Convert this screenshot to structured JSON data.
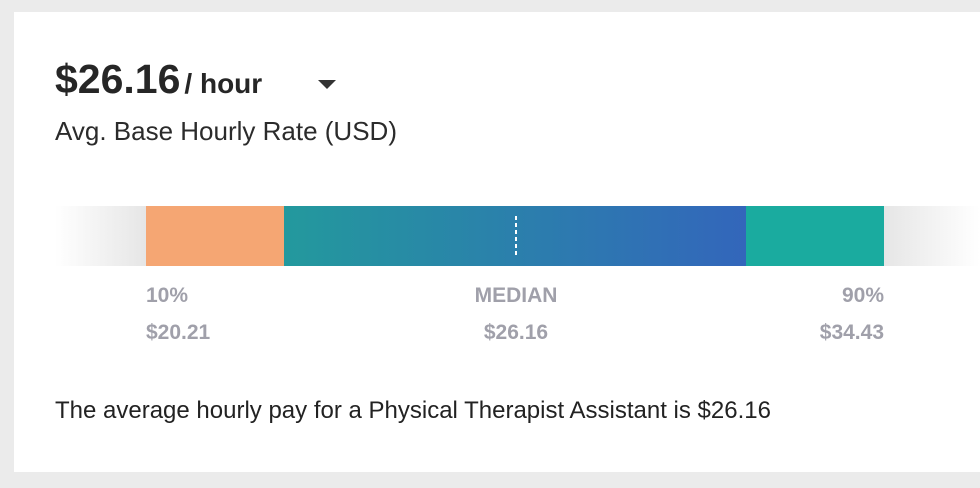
{
  "header": {
    "amount": "$26.16",
    "unit": "/ hour",
    "subtitle": "Avg. Base Hourly Rate (USD)"
  },
  "range": {
    "low": {
      "label": "10%",
      "value": "$20.21"
    },
    "median": {
      "label": "MEDIAN",
      "value": "$26.16"
    },
    "high": {
      "label": "90%",
      "value": "$34.43"
    }
  },
  "summary": "The average hourly pay for a Physical Therapist Assistant is $26.16"
}
